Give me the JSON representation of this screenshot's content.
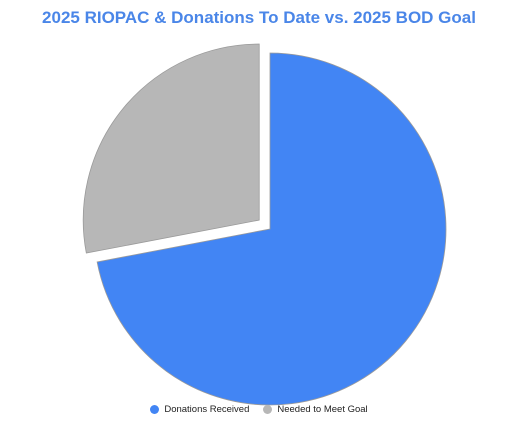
{
  "chart_data": {
    "type": "pie",
    "title": "2025 RIOPAC & Donations To Date vs. 2025 BOD Goal",
    "slices": [
      {
        "label": "Donations Received",
        "value": 72,
        "color": "#4285f4",
        "exploded": false
      },
      {
        "label": "Needed to Meet Goal",
        "value": 28,
        "color": "#b7b7b7",
        "exploded": true
      }
    ],
    "legend_position": "bottom"
  }
}
